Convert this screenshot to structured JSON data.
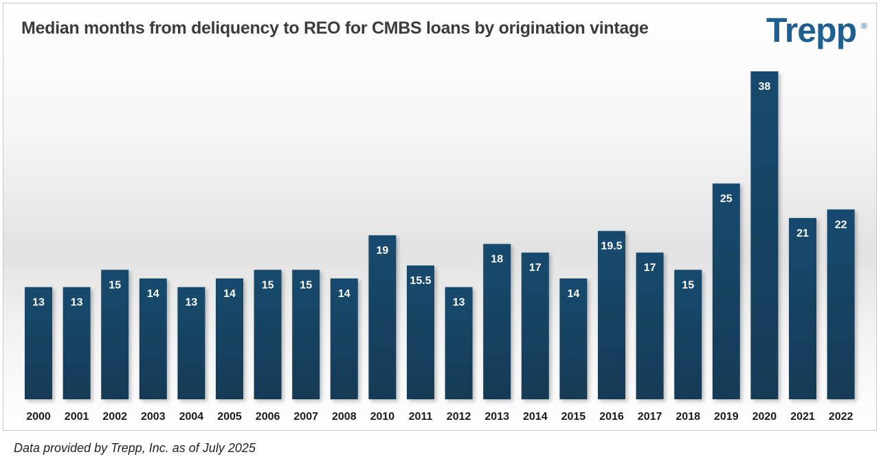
{
  "chart_data": {
    "type": "bar",
    "title": "Median months from deliquency to REO for CMBS loans by origination vintage",
    "xlabel": "",
    "ylabel": "",
    "ylim": [
      0,
      40
    ],
    "grid": false,
    "categories": [
      "2000",
      "2001",
      "2002",
      "2003",
      "2004",
      "2005",
      "2006",
      "2007",
      "2008",
      "2010",
      "2011",
      "2012",
      "2013",
      "2014",
      "2015",
      "2016",
      "2017",
      "2018",
      "2019",
      "2020",
      "2021",
      "2022"
    ],
    "values": [
      13,
      13,
      15,
      14,
      13,
      14,
      15,
      15,
      14,
      19,
      15.5,
      13,
      18,
      17,
      14,
      19.5,
      17,
      15,
      25,
      38,
      21,
      22
    ],
    "value_labels": [
      "13",
      "13",
      "15",
      "14",
      "13",
      "14",
      "15",
      "15",
      "14",
      "19",
      "15.5",
      "13",
      "18",
      "17",
      "14",
      "19.5",
      "17",
      "15",
      "25",
      "38",
      "21",
      "22"
    ],
    "bar_color": "#144a6e",
    "bar_color_bottom": "#163a55"
  },
  "brand": {
    "logo_text": "Trepp",
    "registered_mark": "®",
    "color": "#1f5f8f"
  },
  "source_note": "Data provided by Trepp, Inc. as of July 2025"
}
